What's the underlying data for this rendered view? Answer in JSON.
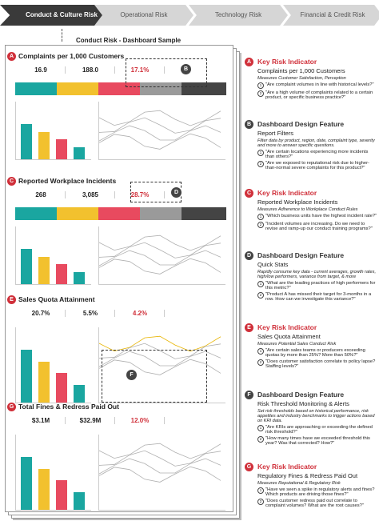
{
  "tabs": [
    "Conduct & Culture Risk",
    "Operational Risk",
    "Technology Risk",
    "Financial & Credit Risk"
  ],
  "subtitle": "Conduct Risk - Dashboard Sample",
  "dashboard": {
    "sections": [
      {
        "letter": "A",
        "title": "Complaints per 1,000 Customers",
        "stats": [
          "16.9",
          "188.0",
          "17.1%"
        ]
      },
      {
        "letter": "C",
        "title": "Reported Workplace Incidents",
        "stats": [
          "268",
          "3,085",
          "28.7%"
        ]
      },
      {
        "letter": "E",
        "title": "Sales Quota Attainment",
        "stats": [
          "20.7%",
          "5.5%",
          "4.2%"
        ]
      },
      {
        "letter": "G",
        "title": "Total Fines & Redress Paid Out",
        "stats": [
          "$3.1M",
          "$32.9M",
          "12.0%"
        ]
      }
    ],
    "callouts": [
      "B",
      "D",
      "F"
    ]
  },
  "annotations": [
    {
      "letter": "A",
      "kind": "Key Risk Indicator",
      "title": "Complaints per 1,000 Customers",
      "subtitle": "Measures Customer Satisfaction, Perception",
      "questions": [
        {
          "n": "1",
          "text": "\"Are complaint volumes in line with historical levels?\""
        },
        {
          "n": "2",
          "text": "\"Are a high volume of complaints related to a certain product, or specific business practice?\""
        }
      ]
    },
    {
      "letter": "B",
      "kind": "Dashboard Design Feature",
      "title": "Report Filters",
      "subtitle": "Filter data by product, region, date, complaint type, severity and more to answer specific questions.",
      "questions": [
        {
          "n": "1",
          "text": "\"Are certain locations experiencing more incidents than others?\""
        },
        {
          "n": "2",
          "text": "\"Are we exposed to reputational risk due to higher-than-normal severe complaints for this product?\""
        }
      ]
    },
    {
      "letter": "C",
      "kind": "Key Risk Indicator",
      "title": "Reported Workplace Incidents",
      "subtitle": "Measures Adherence to Workplace Conduct Rules",
      "questions": [
        {
          "n": "1",
          "text": "\"Which business units have the highest incident rate?\""
        },
        {
          "n": "2",
          "text": "\"Incident volumes are increasing. Do we need to revise and ramp-up our conduct training programs?\""
        }
      ]
    },
    {
      "letter": "D",
      "kind": "Dashboard Design Feature",
      "title": "Quick Stats",
      "subtitle": "Rapidly consume key data - current averages, growth rates, high/low performers, variance from target, & more",
      "questions": [
        {
          "n": "1",
          "text": "\"What are the leading practices of high performers for this metric?\""
        },
        {
          "n": "2",
          "text": "\"Product A has missed their target for 3-months in a row. How can we investigate this variance?\""
        }
      ]
    },
    {
      "letter": "E",
      "kind": "Key Risk Indicator",
      "title": "Sales Quota Attainment",
      "subtitle": "Measures Potential Sales Conduct Risk",
      "questions": [
        {
          "n": "1",
          "text": "\"Are certain sales teams or producers exceeding quotas by more than 25%? More than 50%?\""
        },
        {
          "n": "2",
          "text": "\"Does customer satisfaction correlate to policy lapse? Staffing levels?\""
        }
      ]
    },
    {
      "letter": "F",
      "kind": "Dashboard Design Feature",
      "title": "Risk Threshold Monitoring & Alerts",
      "subtitle": "Set risk thresholds based on historical performance, risk appetites and industry benchmarks to trigger actions based on KRI data.",
      "questions": [
        {
          "n": "1",
          "text": "\"Are KRIs are approaching or exceeding the defined risk threshold?\""
        },
        {
          "n": "2",
          "text": "\"How many times have we exceeded threshold this year? Was that corrected? How?\""
        }
      ]
    },
    {
      "letter": "G",
      "kind": "Key Risk Indicator",
      "title": "Regulatory Fines & Redress Paid Out",
      "subtitle": "Measures Reputational & Regulatory Risk",
      "questions": [
        {
          "n": "1",
          "text": "\"Have we seen a spike in regulatory alerts and fines? Which products are driving those fines?\""
        },
        {
          "n": "2",
          "text": "\"Does customer redress paid out correlate to complaint volumes? What are the root causes?\""
        }
      ]
    }
  ]
}
